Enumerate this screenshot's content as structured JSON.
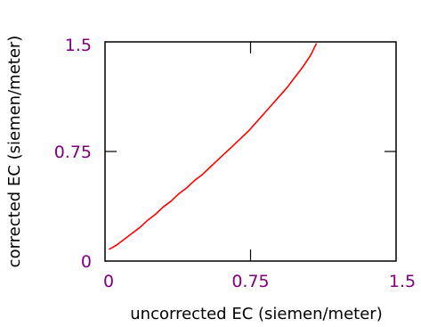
{
  "chart_data": {
    "type": "line",
    "title": "",
    "xlabel": "uncorrected EC (siemen/meter)",
    "ylabel": "corrected EC (siemen/meter)",
    "xlim": [
      0,
      1.5
    ],
    "ylim": [
      0,
      1.5
    ],
    "xticks": [
      0,
      0.75,
      1.5
    ],
    "yticks": [
      0,
      0.75,
      1.5
    ],
    "xtick_labels": [
      "0",
      "0.75",
      "1.5"
    ],
    "ytick_labels": [
      "0",
      "0.75",
      "1.5"
    ],
    "grid": false,
    "series": [
      {
        "color": "#ff0000",
        "x": [
          0.02,
          0.06,
          0.1,
          0.14,
          0.18,
          0.22,
          0.26,
          0.3,
          0.34,
          0.38,
          0.42,
          0.46,
          0.5,
          0.54,
          0.58,
          0.62,
          0.66,
          0.7,
          0.74,
          0.78,
          0.82,
          0.86,
          0.9,
          0.94,
          0.98,
          1.02,
          1.06,
          1.09
        ],
        "y": [
          0.08,
          0.11,
          0.15,
          0.19,
          0.23,
          0.28,
          0.32,
          0.37,
          0.41,
          0.46,
          0.5,
          0.55,
          0.59,
          0.64,
          0.69,
          0.74,
          0.79,
          0.84,
          0.89,
          0.95,
          1.01,
          1.07,
          1.13,
          1.19,
          1.26,
          1.33,
          1.41,
          1.49
        ]
      }
    ],
    "tick_color": "#800080",
    "line_color": "#ff0000"
  }
}
